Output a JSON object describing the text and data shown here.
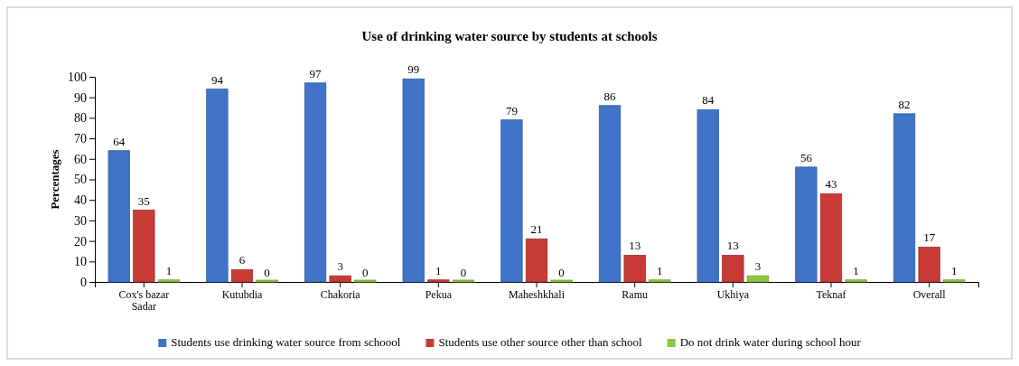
{
  "chart_data": {
    "type": "bar",
    "title": "Use of drinking water source by students at schools",
    "ylabel": "Percentages",
    "categories": [
      "Cox's bazar Sadar",
      "Kutubdia",
      "Chakoria",
      "Pekua",
      "Maheshkhali",
      "Ramu",
      "Ukhiya",
      "Teknaf",
      "Overall"
    ],
    "series": [
      {
        "name": "Students use drinking water source from schoool",
        "color": "#3f74c9",
        "values": [
          64,
          94,
          97,
          99,
          79,
          86,
          84,
          56,
          82
        ]
      },
      {
        "name": "Students use other source other than school",
        "color": "#c83a36",
        "values": [
          35,
          6,
          3,
          1,
          21,
          13,
          13,
          43,
          17
        ]
      },
      {
        "name": "Do not drink water during school hour",
        "color": "#8cc63f",
        "values": [
          1,
          0,
          0,
          0,
          0,
          1,
          3,
          1,
          1
        ]
      }
    ],
    "ylim": [
      0,
      100
    ],
    "yticks": [
      0,
      10,
      20,
      30,
      40,
      50,
      60,
      70,
      80,
      90,
      100
    ],
    "data_labels": true,
    "legend": "bottom"
  }
}
